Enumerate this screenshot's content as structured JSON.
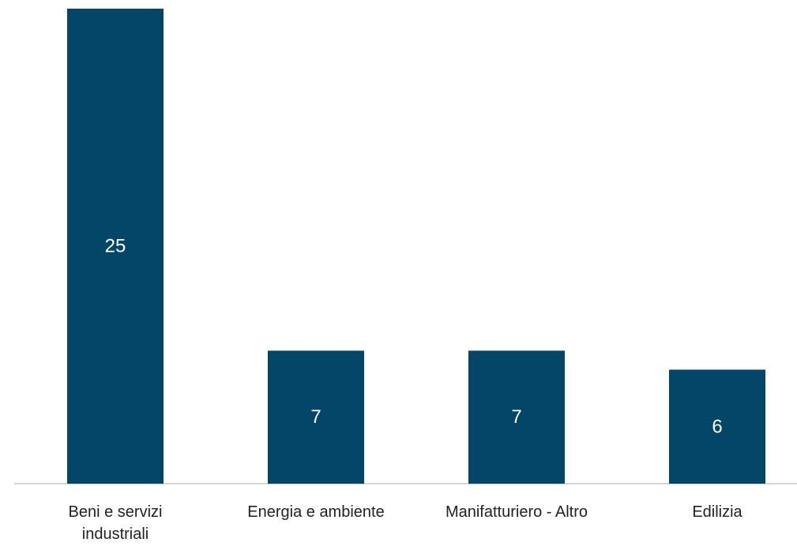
{
  "colors": {
    "bar": "#034667",
    "axis": "#c8c8c8",
    "label_inside": "#ffffff",
    "category_text": "#222222"
  },
  "chart_data": {
    "type": "bar",
    "categories": [
      [
        "Beni e servizi",
        "industriali"
      ],
      [
        "Energia e ambiente"
      ],
      [
        "Manifatturiero - Altro"
      ],
      [
        "Edilizia"
      ]
    ],
    "values": [
      25,
      7,
      7,
      6
    ],
    "title": "",
    "xlabel": "",
    "ylabel": "",
    "ylim": [
      0,
      25
    ],
    "grid": false,
    "legend": "none",
    "data_labels": "inside-center"
  }
}
